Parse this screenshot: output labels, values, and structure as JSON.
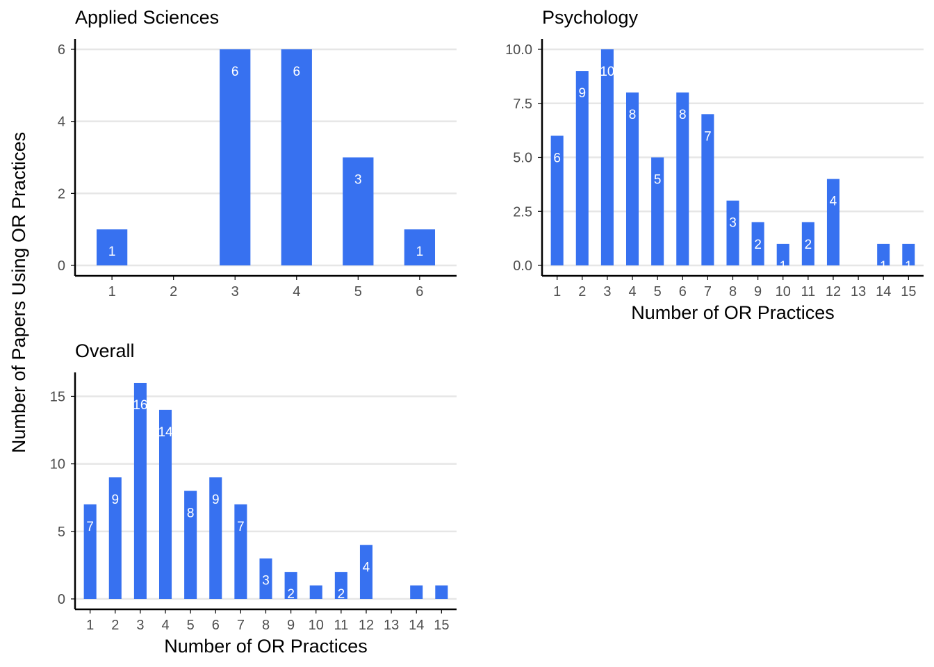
{
  "figure": {
    "shared_ylabel": "Number of Papers Using OR Practices",
    "bar_color": "#3771f0",
    "label_color": "#ffffff",
    "grid_color": "#e6e6e6",
    "axis_color": "#000000"
  },
  "chart_data": [
    {
      "type": "bar",
      "title": "Applied Sciences",
      "xlabel": "",
      "ylabel": "Number of Papers Using OR Practices",
      "categories": [
        "1",
        "2",
        "3",
        "4",
        "5",
        "6"
      ],
      "values": [
        1,
        0,
        6,
        6,
        3,
        1
      ],
      "data_labels": [
        "1",
        "",
        "6",
        "6",
        "3",
        "1"
      ],
      "yticks": [
        "0",
        "2",
        "4",
        "6"
      ],
      "ylim": [
        0,
        6
      ],
      "grid": true
    },
    {
      "type": "bar",
      "title": "Psychology",
      "xlabel": "Number of OR Practices",
      "ylabel": "Number of Papers Using OR Practices",
      "categories": [
        "1",
        "2",
        "3",
        "4",
        "5",
        "6",
        "7",
        "8",
        "9",
        "10",
        "11",
        "12",
        "13",
        "14",
        "15"
      ],
      "values": [
        6,
        9,
        10,
        8,
        5,
        8,
        7,
        3,
        2,
        1,
        2,
        4,
        0,
        1,
        1
      ],
      "data_labels": [
        "6",
        "9",
        "10",
        "8",
        "5",
        "8",
        "7",
        "3",
        "2",
        "1",
        "2",
        "4",
        "",
        "1",
        "1"
      ],
      "yticks": [
        "0.0",
        "2.5",
        "5.0",
        "7.5",
        "10.0"
      ],
      "ylim": [
        0,
        10
      ],
      "grid": true
    },
    {
      "type": "bar",
      "title": "Overall",
      "xlabel": "Number of OR Practices",
      "ylabel": "Number of Papers Using OR Practices",
      "categories": [
        "1",
        "2",
        "3",
        "4",
        "5",
        "6",
        "7",
        "8",
        "9",
        "10",
        "11",
        "12",
        "13",
        "14",
        "15"
      ],
      "values": [
        7,
        9,
        16,
        14,
        8,
        9,
        7,
        3,
        2,
        1,
        2,
        4,
        0,
        1,
        1
      ],
      "data_labels": [
        "7",
        "9",
        "16",
        "14",
        "8",
        "9",
        "7",
        "3",
        "2",
        "",
        "2",
        "4",
        "",
        "",
        ""
      ],
      "yticks": [
        "0",
        "5",
        "10",
        "15"
      ],
      "ylim": [
        0,
        16
      ],
      "grid": true
    }
  ]
}
